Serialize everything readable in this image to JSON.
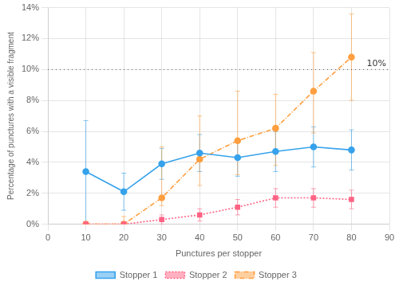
{
  "chart_data": {
    "type": "line",
    "x": [
      10,
      20,
      30,
      40,
      50,
      60,
      70,
      80
    ],
    "series": [
      {
        "name": "Stopper 1",
        "marker": "circle",
        "line_style": "solid",
        "values": [
          0.034,
          0.021,
          0.039,
          0.046,
          0.043,
          0.047,
          0.05,
          0.048
        ],
        "error_low": [
          0.034,
          0.012,
          0.01,
          0.012,
          0.012,
          0.013,
          0.013,
          0.013
        ],
        "error_high": [
          0.033,
          0.012,
          0.01,
          0.012,
          0.012,
          0.013,
          0.013,
          0.013
        ]
      },
      {
        "name": "Stopper 2",
        "marker": "square",
        "line_style": "dotted",
        "values": [
          0.0,
          0.0,
          0.003,
          0.006,
          0.011,
          0.017,
          0.017,
          0.016
        ],
        "error_low": [
          0.0,
          0.0,
          0.003,
          0.004,
          0.005,
          0.006,
          0.006,
          0.006
        ],
        "error_high": [
          0.0,
          0.0,
          0.003,
          0.004,
          0.005,
          0.006,
          0.006,
          0.006
        ]
      },
      {
        "name": "Stopper 3",
        "marker": "circle",
        "line_style": "dashdot",
        "values": [
          0.0,
          0.0,
          0.017,
          0.042,
          0.054,
          0.062,
          0.086,
          0.108
        ],
        "error_low": [
          0.0,
          0.0,
          0.005,
          0.017,
          0.022,
          0.024,
          0.027,
          0.028
        ],
        "error_high": [
          0.0,
          0.005,
          0.033,
          0.028,
          0.032,
          0.022,
          0.025,
          0.028
        ]
      }
    ],
    "xlabel": "Punctures per stopper",
    "ylabel": "Percentage of punctures with a visible fragment",
    "xlim": [
      0,
      90
    ],
    "ylim": [
      0,
      0.14
    ],
    "xticks": [
      0,
      10,
      20,
      30,
      40,
      50,
      60,
      70,
      80,
      90
    ],
    "yticks": [
      {
        "value": 0.0,
        "label": "0%"
      },
      {
        "value": 0.02,
        "label": "2%"
      },
      {
        "value": 0.04,
        "label": "4%"
      },
      {
        "value": 0.06,
        "label": "6%"
      },
      {
        "value": 0.08,
        "label": "8%"
      },
      {
        "value": 0.1,
        "label": "10%"
      },
      {
        "value": 0.12,
        "label": "12%"
      },
      {
        "value": 0.14,
        "label": "14%"
      }
    ],
    "grid": true,
    "legend": "bottom",
    "annotations": [
      {
        "type": "hline",
        "y": 0.1,
        "text": "10%"
      }
    ]
  }
}
